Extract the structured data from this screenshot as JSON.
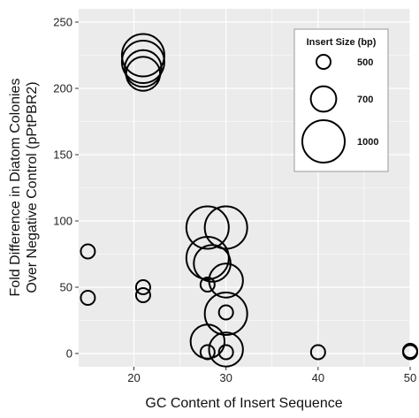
{
  "chart_data": {
    "type": "scatter",
    "xlabel": "GC Content of Insert Sequence",
    "ylabel_lines": [
      "Fold Difference in Diatom Colonies",
      "Over Negative Control (pPtPBR2)"
    ],
    "xlim": [
      14,
      50
    ],
    "ylim": [
      -10,
      260
    ],
    "x_ticks": [
      20,
      30,
      40,
      50
    ],
    "y_ticks": [
      0,
      50,
      100,
      150,
      200,
      250
    ],
    "grid": true,
    "colors": {
      "panel_background": "#ebebeb",
      "grid": "#ffffff",
      "marker_stroke": "#000000",
      "legend_background": "#ffffff",
      "legend_border": "#999999"
    },
    "legend": {
      "title": "Insert Size (bp)",
      "placement": "top-right",
      "entries": [
        {
          "label": "500",
          "size": 500
        },
        {
          "label": "700",
          "size": 700
        },
        {
          "label": "1000",
          "size": 1000
        }
      ]
    },
    "points": [
      {
        "x": 21,
        "y": 225,
        "size": 1000
      },
      {
        "x": 21,
        "y": 220,
        "size": 1000
      },
      {
        "x": 21,
        "y": 215,
        "size": 900
      },
      {
        "x": 21,
        "y": 211,
        "size": 850
      },
      {
        "x": 15,
        "y": 77,
        "size": 500
      },
      {
        "x": 15,
        "y": 42,
        "size": 500
      },
      {
        "x": 21,
        "y": 50,
        "size": 500
      },
      {
        "x": 21,
        "y": 44,
        "size": 500
      },
      {
        "x": 28,
        "y": 95,
        "size": 1000
      },
      {
        "x": 30,
        "y": 95,
        "size": 1000
      },
      {
        "x": 28,
        "y": 72,
        "size": 1000
      },
      {
        "x": 28.5,
        "y": 68,
        "size": 900
      },
      {
        "x": 30,
        "y": 55,
        "size": 850
      },
      {
        "x": 28,
        "y": 52,
        "size": 500
      },
      {
        "x": 30,
        "y": 30,
        "size": 1000
      },
      {
        "x": 30,
        "y": 31,
        "size": 500
      },
      {
        "x": 28,
        "y": 9,
        "size": 850
      },
      {
        "x": 28,
        "y": 1,
        "size": 500
      },
      {
        "x": 30,
        "y": 3,
        "size": 850
      },
      {
        "x": 30,
        "y": 1,
        "size": 500
      },
      {
        "x": 40,
        "y": 1,
        "size": 500
      },
      {
        "x": 50,
        "y": 1,
        "size": 500
      },
      {
        "x": 50,
        "y": 2,
        "size": 500
      }
    ]
  }
}
